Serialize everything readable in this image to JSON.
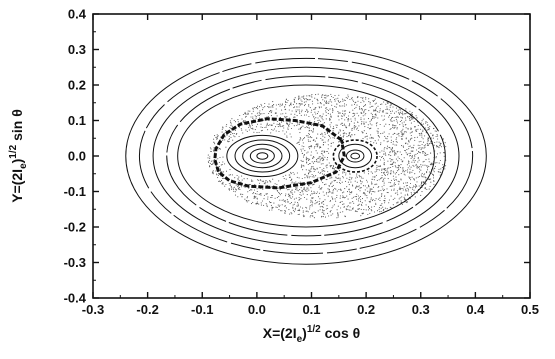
{
  "chart_data": {
    "type": "scatter",
    "title": "",
    "xlabel": "X=(2I)^1/2 cos θ",
    "ylabel": "Y=(2I)^1/2 sin θ",
    "xlabel_parts": {
      "base": "X=(2I",
      "sub": "e",
      "mid": ")",
      "sup": "1/2",
      "tail": " cos θ"
    },
    "ylabel_parts": {
      "base": "Y=(2I",
      "sub": "e",
      "mid": ")",
      "sup": "1/2",
      "tail": " sin θ"
    },
    "xlim": [
      -0.3,
      0.5
    ],
    "ylim": [
      -0.4,
      0.4
    ],
    "xticks": [
      -0.3,
      -0.2,
      -0.1,
      0.0,
      0.1,
      0.2,
      0.3,
      0.4,
      0.5
    ],
    "yticks": [
      -0.4,
      -0.3,
      -0.2,
      -0.1,
      0.0,
      0.1,
      0.2,
      0.3,
      0.4
    ],
    "xtick_labels": [
      "-0.3",
      "-0.2",
      "-0.1",
      "0.0",
      "0.1",
      "0.2",
      "0.3",
      "0.4",
      "0.5"
    ],
    "ytick_labels": [
      "-0.4",
      "-0.3",
      "-0.2",
      "-0.1",
      "0.0",
      "0.1",
      "0.2",
      "0.3",
      "0.4"
    ],
    "grid": false,
    "colors": {
      "ink": "#111111",
      "scatter": "#555555",
      "background": "#ffffff"
    },
    "outer_ellipses": [
      {
        "cx": 0.09,
        "cy": 0.0,
        "rx": 0.33,
        "ry": 0.305,
        "style": "solid"
      },
      {
        "cx": 0.09,
        "cy": 0.0,
        "rx": 0.305,
        "ry": 0.275,
        "style": "dash"
      },
      {
        "cx": 0.09,
        "cy": 0.0,
        "rx": 0.28,
        "ry": 0.25,
        "style": "solid"
      },
      {
        "cx": 0.09,
        "cy": 0.0,
        "rx": 0.255,
        "ry": 0.225,
        "style": "dash"
      },
      {
        "cx": 0.09,
        "cy": 0.0,
        "rx": 0.235,
        "ry": 0.2,
        "style": "solid"
      }
    ],
    "chaotic_sea": {
      "cx": 0.13,
      "cy": 0.0,
      "rx": 0.22,
      "ry": 0.175,
      "points": 2600
    },
    "separatrix": {
      "points": [
        [
          0.155,
          0.045
        ],
        [
          0.12,
          0.085
        ],
        [
          0.07,
          0.1
        ],
        [
          0.02,
          0.105
        ],
        [
          -0.03,
          0.09
        ],
        [
          -0.06,
          0.06
        ],
        [
          -0.075,
          0.02
        ],
        [
          -0.077,
          -0.01
        ],
        [
          -0.07,
          -0.045
        ],
        [
          -0.05,
          -0.07
        ],
        [
          -0.015,
          -0.085
        ],
        [
          0.04,
          -0.09
        ],
        [
          0.1,
          -0.075
        ],
        [
          0.145,
          -0.045
        ],
        [
          0.16,
          0.0
        ],
        [
          0.155,
          0.045
        ]
      ]
    },
    "island_left": {
      "center": [
        0.01,
        0.0
      ],
      "rings": [
        [
          0.065,
          0.058
        ],
        [
          0.05,
          0.045
        ],
        [
          0.036,
          0.033
        ],
        [
          0.022,
          0.02
        ],
        [
          0.01,
          0.009
        ]
      ]
    },
    "island_right": {
      "center": [
        0.18,
        0.0
      ],
      "rings": [
        [
          0.04,
          0.045
        ],
        [
          0.03,
          0.033
        ],
        [
          0.016,
          0.017
        ],
        [
          0.008,
          0.008
        ]
      ]
    }
  }
}
